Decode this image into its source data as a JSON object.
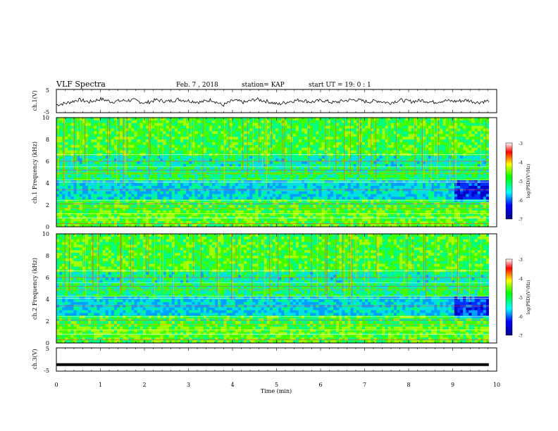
{
  "header": {
    "title": "VLF Spectra",
    "date": "Feb. 7 , 2018",
    "station": "station= KAP",
    "start_ut": "start UT =  19: 0  : 1"
  },
  "chart_data": [
    {
      "type": "line",
      "panel": "ch1-waveform",
      "ylabel": "ch.1(V)",
      "ylim": [
        -5,
        5
      ],
      "yticks": [
        "5",
        "-5"
      ],
      "xlim": [
        0,
        10
      ],
      "series": [
        {
          "values": [
            -1.6,
            -0.8,
            0.6,
            -0.4,
            0.9,
            -0.3,
            0.2,
            0.4,
            -0.9,
            0.5,
            -0.2,
            0.7,
            0.1,
            -0.5,
            0.6,
            -1.8,
            0.3,
            -0.6,
            0.8,
            -0.1,
            -1.4,
            -0.2,
            0.5,
            -0.4,
            0.3,
            -0.7,
            0.2,
            0.6,
            -0.3,
            0.1,
            -0.8,
            0.4,
            -0.2,
            0.3,
            -0.5,
            0.2,
            -0.1,
            0.4,
            -0.6,
            0.1
          ]
        }
      ]
    },
    {
      "type": "heatmap",
      "panel": "ch1-spectrogram",
      "ylabel": "ch.1 Frequency (kHz)",
      "yticks": [
        "0",
        "2",
        "4",
        "6",
        "8",
        "10"
      ],
      "ylim": [
        0,
        10
      ],
      "xlim": [
        0,
        10
      ],
      "colorbar": {
        "label": "log(PSD)(V²/Hz)",
        "ticks": [
          "-3",
          "-4",
          "-5",
          "-6",
          "-7"
        ],
        "range": [
          -7,
          -3
        ]
      }
    },
    {
      "type": "heatmap",
      "panel": "ch2-spectrogram",
      "ylabel": "ch.2 Frequency (kHz)",
      "yticks": [
        "0",
        "2",
        "4",
        "6",
        "8",
        "10"
      ],
      "ylim": [
        0,
        10
      ],
      "xlim": [
        0,
        10
      ],
      "colorbar": {
        "label": "log(PSD)(V²/Hz)",
        "ticks": [
          "-3",
          "-4",
          "-5",
          "-6",
          "-7"
        ],
        "range": [
          -7,
          -3
        ]
      }
    },
    {
      "type": "line",
      "panel": "ch3-waveform",
      "ylabel": "ch.3(V)",
      "ylim": [
        -5,
        5
      ],
      "yticks": [
        "5",
        "-5"
      ],
      "xlim": [
        0,
        10
      ],
      "series": [
        {
          "values": [
            -2.2,
            -2.2,
            -2.2,
            -2.2,
            -2.2,
            -2.2,
            -2.2,
            -2.2,
            -2.2,
            -2.2,
            -2.2
          ]
        }
      ]
    }
  ],
  "xaxis": {
    "label": "Time (min)",
    "ticks": [
      "0",
      "1",
      "2",
      "3",
      "4",
      "5",
      "6",
      "7",
      "8",
      "9",
      "10"
    ]
  }
}
